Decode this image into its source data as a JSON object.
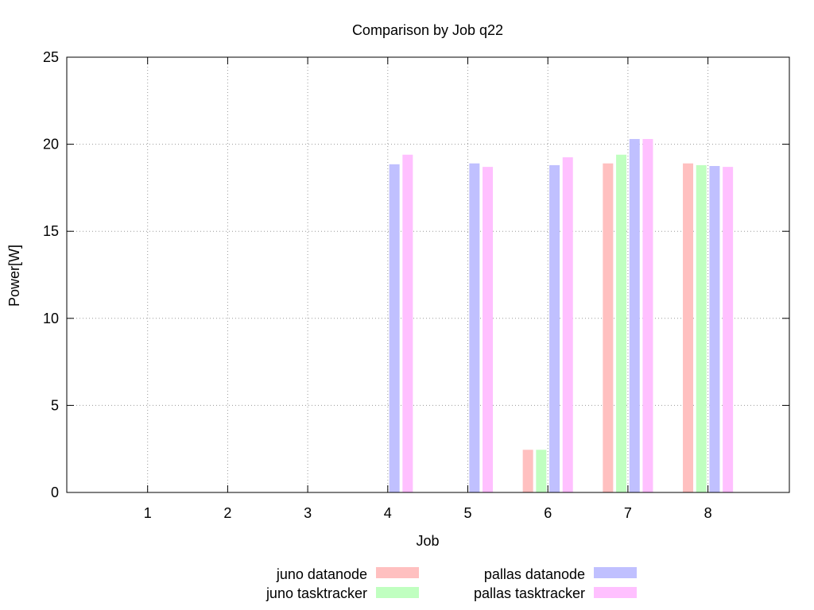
{
  "chart_data": {
    "type": "bar",
    "title": "Comparison by Job q22",
    "xlabel": "Job",
    "ylabel": "Power[W]",
    "categories": [
      "1",
      "2",
      "3",
      "4",
      "5",
      "6",
      "7",
      "8"
    ],
    "ylim": [
      0,
      25
    ],
    "yticks": [
      "0",
      "5",
      "10",
      "15",
      "20",
      "25"
    ],
    "grid": true,
    "legend_position": "bottom-center",
    "series": [
      {
        "name": "juno datanode",
        "color": "#ffc0c0",
        "values": [
          0,
          0,
          0,
          0,
          0,
          2.45,
          18.9,
          18.9
        ]
      },
      {
        "name": "juno tasktracker",
        "color": "#c0ffc0",
        "values": [
          0,
          0,
          0,
          0,
          0,
          2.45,
          19.4,
          18.8
        ]
      },
      {
        "name": "pallas datanode",
        "color": "#c0c0ff",
        "values": [
          0,
          0,
          0,
          18.85,
          18.9,
          18.8,
          20.3,
          18.75
        ]
      },
      {
        "name": "pallas tasktracker",
        "color": "#ffc0ff",
        "values": [
          0,
          0,
          0,
          19.4,
          18.7,
          19.25,
          20.3,
          18.7
        ]
      }
    ]
  }
}
